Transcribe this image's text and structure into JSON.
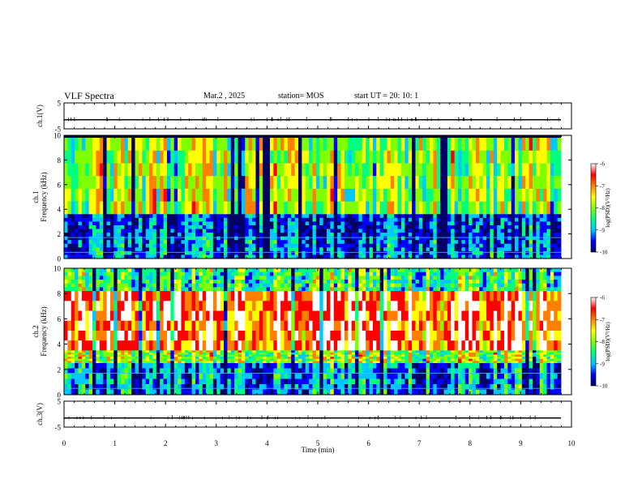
{
  "header": {
    "title": "VLF Spectra",
    "date": "Mar.2 , 2025",
    "station": "station= MOS",
    "start": "start UT = 20: 10: 1"
  },
  "chart_data": {
    "type": "heatmap",
    "x": {
      "label": "Time (min)",
      "range": [
        0,
        10
      ],
      "ticks": [
        0,
        1,
        2,
        3,
        4,
        5,
        6,
        7,
        8,
        9,
        10
      ]
    },
    "panels": [
      {
        "id": "ch1-waveform",
        "ylabel": "ch.1(V)",
        "yrange": [
          -5,
          5
        ],
        "yticks": [
          "5",
          "-5"
        ],
        "trace_level": -1.5
      },
      {
        "id": "ch1-spectrogram",
        "ylabel": "ch.1 Frequency (kHz)",
        "yrange": [
          0,
          10
        ],
        "yticks": [
          "0",
          "2",
          "4",
          "6",
          "8",
          "10"
        ],
        "bands": [
          {
            "from": 3.6,
            "to": 9.8,
            "level": -8.0
          },
          {
            "from": 1.8,
            "to": 3.6,
            "level": -9.4
          },
          {
            "from": 0.0,
            "to": 1.8,
            "level": -9.2
          }
        ]
      },
      {
        "id": "ch2-spectrogram",
        "ylabel": "ch.2 Frequency (kHz)",
        "yrange": [
          0,
          10
        ],
        "yticks": [
          "0",
          "2",
          "4",
          "6",
          "8",
          "10"
        ],
        "bands": [
          {
            "from": 8.2,
            "to": 10.0,
            "level": -8.3
          },
          {
            "from": 3.5,
            "to": 8.2,
            "level": -6.7
          },
          {
            "from": 2.5,
            "to": 3.5,
            "level": -7.9
          },
          {
            "from": 0.0,
            "to": 2.5,
            "level": -8.9
          }
        ]
      },
      {
        "id": "ch3-waveform",
        "ylabel": "ch.3(V)",
        "yrange": [
          -5,
          5
        ],
        "yticks": [
          "5",
          "-5"
        ],
        "trace_level": -1.5
      }
    ],
    "colorbar": {
      "label": "log(PSD)(V²/Hz)",
      "range": [
        -10,
        -6
      ],
      "ticks": [
        "-6",
        "-7",
        "-8",
        "-9",
        "-10"
      ],
      "colors": [
        "#000066",
        "#0000ff",
        "#00c8ff",
        "#00ff80",
        "#80ff00",
        "#ffff00",
        "#ff8000",
        "#ff0000",
        "#ffffff"
      ]
    }
  }
}
